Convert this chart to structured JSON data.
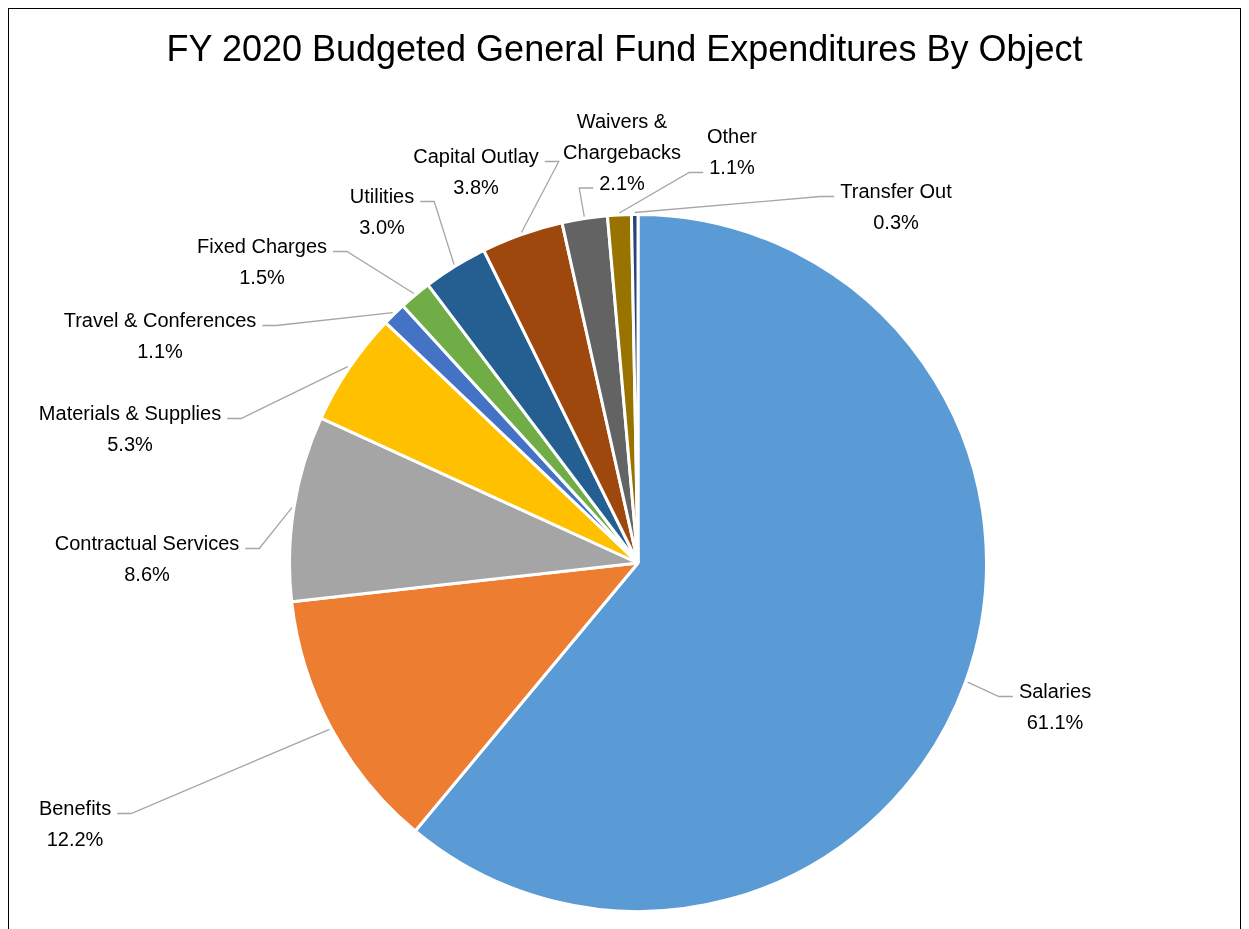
{
  "chart_data": {
    "type": "pie",
    "title": "FY 2020 Budgeted General Fund Expenditures By Object",
    "categories": [
      "Salaries",
      "Benefits",
      "Contractual Services",
      "Materials & Supplies",
      "Travel & Conferences",
      "Fixed Charges",
      "Utilities",
      "Capital Outlay",
      "Waivers & Chargebacks",
      "Other",
      "Transfer Out"
    ],
    "values": [
      61.1,
      12.2,
      8.6,
      5.3,
      1.1,
      1.5,
      3.0,
      3.8,
      2.1,
      1.1,
      0.3
    ],
    "value_labels": [
      "61.1%",
      "12.2%",
      "8.6%",
      "5.3%",
      "1.1%",
      "1.5%",
      "3.0%",
      "3.8%",
      "2.1%",
      "1.1%",
      "0.3%"
    ],
    "colors": [
      "#5b9bd5",
      "#ed7d31",
      "#a5a5a5",
      "#ffc000",
      "#4472c4",
      "#70ad47",
      "#255e91",
      "#9e480e",
      "#636363",
      "#997300",
      "#264478"
    ],
    "legend": false
  }
}
